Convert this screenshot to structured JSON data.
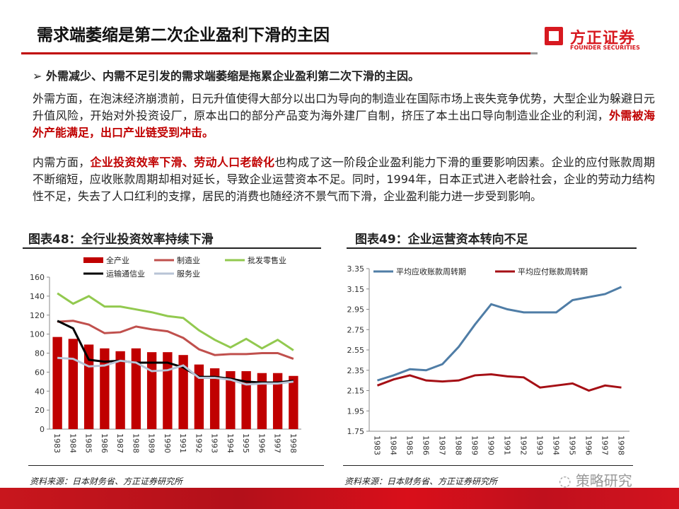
{
  "header": {
    "title": "需求端萎缩是第二次企业盈利下滑的主因",
    "logo_cn": "方正证券",
    "logo_en": "FOUNDER SECURITIES"
  },
  "bullet": {
    "marker": "➢",
    "text": "外需减少、内需不足引发的需求端萎缩是拖累企业盈利第二次下滑的主因。"
  },
  "para1": {
    "text": "外需方面，在泡沫经济崩溃前，日元升值使得大部分以出口为导向的制造业在国际市场上丧失竞争优势，大型企业为躲避日元升值风险，开始对外投资设厂，原本出口的部分产品变为海外建厂自制，挤压了本土出口导向制造业企业的利润，",
    "highlight": "外需被海外产能满足，出口产业链受到冲击。"
  },
  "para2": {
    "pre": "内需方面，",
    "highlight": "企业投资效率下滑、劳动人口老龄化",
    "text": "也构成了这一阶段企业盈利能力下滑的重要影响因素。企业的应付账款周期不断缩短，应收账款周期却相对延长，导致企业运营资本不足。同时，1994年，日本正式进入老龄社会，企业的劳动力结构性不足，失去了人口红利的支撑，居民的消费也随经济不景气而下滑，企业盈利能力进一步受到影响。"
  },
  "footer": {
    "source_left": "资料来源：日本财务省、方正证券研究所",
    "source_right": "资料来源：日本财务省、方正证券研究所",
    "watermark": "策略研究"
  },
  "chart_data": [
    {
      "type": "bar+line",
      "title": "图表48：全行业投资效率持续下滑",
      "categories": [
        "1983",
        "1984",
        "1985",
        "1986",
        "1987",
        "1988",
        "1989",
        "1990",
        "1991",
        "1992",
        "1993",
        "1994",
        "1995",
        "1996",
        "1997",
        "1998"
      ],
      "ylim": [
        0,
        160
      ],
      "yticks": [
        0,
        20,
        40,
        60,
        80,
        100,
        120,
        140,
        160
      ],
      "legend": "top",
      "series": [
        {
          "name": "全产业",
          "kind": "bar",
          "color": "#c00000",
          "values": [
            97,
            95,
            89,
            85,
            82,
            85,
            81,
            81,
            78,
            68,
            64,
            61,
            61,
            59,
            59,
            56
          ]
        },
        {
          "name": "制造业",
          "kind": "line",
          "color": "#c0504d",
          "values": [
            113,
            114,
            110,
            101,
            102,
            108,
            105,
            103,
            96,
            84,
            78,
            79,
            79,
            80,
            80,
            74
          ]
        },
        {
          "name": "批发零售业",
          "kind": "line",
          "color": "#92c94f",
          "values": [
            143,
            132,
            140,
            129,
            129,
            126,
            123,
            119,
            117,
            104,
            94,
            86,
            95,
            85,
            94,
            83
          ]
        },
        {
          "name": "运输通信业",
          "kind": "line",
          "color": "#000000",
          "values": [
            114,
            106,
            73,
            71,
            72,
            70,
            70,
            70,
            65,
            55,
            55,
            53,
            50,
            49,
            49,
            51
          ]
        },
        {
          "name": "服务业",
          "kind": "line",
          "color": "#b8c4d6",
          "values": [
            75,
            74,
            66,
            67,
            72,
            70,
            61,
            62,
            67,
            54,
            54,
            52,
            47,
            48,
            48,
            50
          ]
        }
      ]
    },
    {
      "type": "line",
      "title": "图表49：企业运营资本转向不足",
      "categories": [
        "1983",
        "1984",
        "1985",
        "1986",
        "1987",
        "1988",
        "1989",
        "1990",
        "1991",
        "1992",
        "1993",
        "1994",
        "1995",
        "1996",
        "1997",
        "1998"
      ],
      "ylim": [
        1.75,
        3.35
      ],
      "yticks": [
        "1.75",
        "1.95",
        "2.15",
        "2.35",
        "2.55",
        "2.75",
        "2.95",
        "3.15",
        "3.35"
      ],
      "legend": "top",
      "series": [
        {
          "name": "平均应收账款周转期",
          "color": "#4f7da6",
          "values": [
            2.25,
            2.3,
            2.36,
            2.35,
            2.41,
            2.58,
            2.8,
            3.0,
            2.95,
            2.92,
            2.92,
            2.92,
            3.04,
            3.07,
            3.1,
            3.17
          ]
        },
        {
          "name": "平均应付账款周转期",
          "color": "#a50f15",
          "values": [
            2.2,
            2.26,
            2.3,
            2.25,
            2.24,
            2.25,
            2.3,
            2.31,
            2.29,
            2.28,
            2.18,
            2.2,
            2.22,
            2.15,
            2.2,
            2.18
          ]
        }
      ]
    }
  ]
}
